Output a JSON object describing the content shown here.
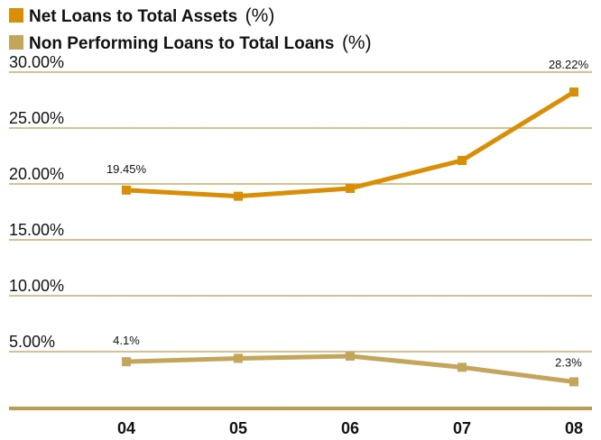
{
  "chart_data": {
    "type": "line",
    "categories": [
      "04",
      "05",
      "06",
      "07",
      "08"
    ],
    "series": [
      {
        "name": "Net Loans to Total Assets",
        "unit": "(%)",
        "color": "#D98E04",
        "values": [
          19.45,
          18.9,
          19.6,
          22.1,
          28.22
        ],
        "data_labels": [
          "19.45%",
          "",
          "",
          "",
          "28.22%"
        ]
      },
      {
        "name": "Non Performing Loans to Total Loans",
        "unit": "(%)",
        "color": "#C4A55C",
        "values": [
          4.1,
          4.4,
          4.6,
          3.6,
          2.3
        ],
        "data_labels": [
          "4.1%",
          "",
          "",
          "",
          "2.3%"
        ]
      }
    ],
    "y_ticks": [
      "5.00%",
      "10.00%",
      "15.00%",
      "20.00%",
      "25.00%",
      "30.00%"
    ],
    "ylim": [
      0,
      30
    ],
    "gridlines": true,
    "gridline_color": "#BF9B52",
    "legend_position": "top-left"
  }
}
